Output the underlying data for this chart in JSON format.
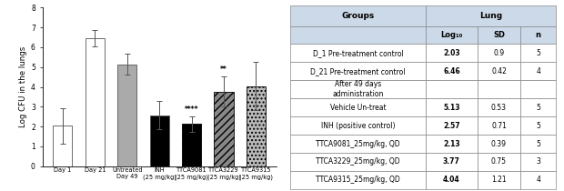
{
  "bar_labels": [
    "Day 1",
    "Day 21",
    "Untreated\nDay 49",
    "INH\n(25 mg/kg)",
    "TTCA9081\n(25 mg/kg)",
    "TTCA3229\n(25 mg/kg)",
    "TTCA9315\n(25 mg/kg)"
  ],
  "bar_values": [
    2.03,
    6.46,
    5.13,
    2.57,
    2.13,
    3.77,
    4.04
  ],
  "bar_errors": [
    0.9,
    0.42,
    0.53,
    0.71,
    0.39,
    0.75,
    1.21
  ],
  "bar_colors": [
    "white",
    "white",
    "#aaaaaa",
    "black",
    "black",
    "#888888",
    "#bbbbbb"
  ],
  "bar_patterns": [
    "",
    "",
    "",
    "",
    "////",
    "////",
    "...."
  ],
  "bar_edgecolors": [
    "#555555",
    "#555555",
    "#555555",
    "#555555",
    "black",
    "black",
    "black"
  ],
  "ylabel": "Log CFU in the lungs",
  "ylim": [
    0,
    8
  ],
  "yticks": [
    0,
    1,
    2,
    3,
    4,
    5,
    6,
    7,
    8
  ],
  "sig_bar4_text": "****",
  "sig_bar5_text": "**",
  "table_header_bg": "#ccd9e8",
  "table_bg": "white",
  "table_rows": [
    [
      "D_1 Pre-treatment control",
      "2.03",
      "0.9",
      "5"
    ],
    [
      "D_21 Pre-treatment control",
      "6.46",
      "0.42",
      "4"
    ],
    [
      "After 49 days\nadministration",
      "",
      "",
      ""
    ],
    [
      "Vehicle Un-treat",
      "5.13",
      "0.53",
      "5"
    ],
    [
      "INH (positive control)",
      "2.57",
      "0.71",
      "5"
    ],
    [
      "TTCA9081_25mg/kg, QD",
      "2.13",
      "0.39",
      "5"
    ],
    [
      "TTCA3229_25mg/kg, QD",
      "3.77",
      "0.75",
      "3"
    ],
    [
      "TTCA9315_25mg/kg, QD",
      "4.04",
      "1.21",
      "4"
    ]
  ]
}
